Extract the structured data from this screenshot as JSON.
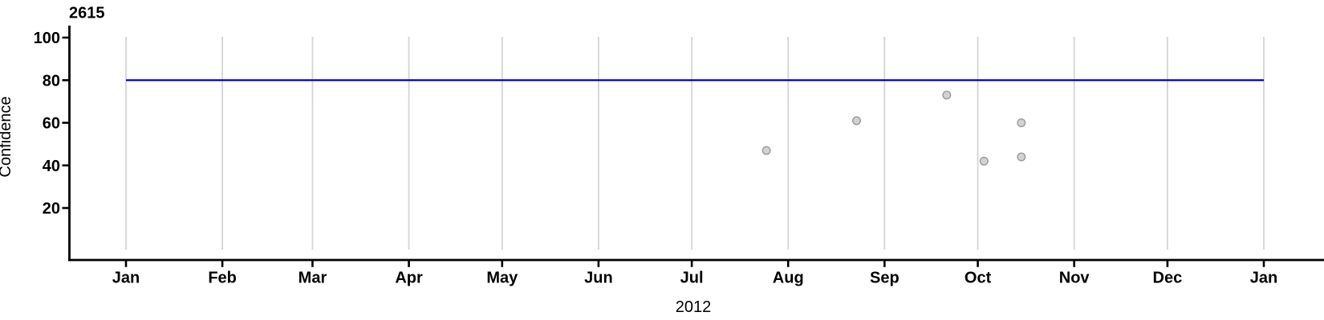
{
  "chart_data": {
    "type": "scatter",
    "title": "2615",
    "xlabel": "2012",
    "ylabel": "Confidence",
    "x_axis": {
      "domain": "2012-01-01 to 2013-01-01",
      "domain_days": 366,
      "tick_labels": [
        "Jan",
        "Feb",
        "Mar",
        "Apr",
        "May",
        "Jun",
        "Jul",
        "Aug",
        "Sep",
        "Oct",
        "Nov",
        "Dec",
        "Jan"
      ],
      "tick_day_offsets": [
        0,
        31,
        60,
        91,
        121,
        152,
        182,
        213,
        244,
        274,
        305,
        335,
        366
      ],
      "grid": true
    },
    "y_axis": {
      "ticks": [
        20,
        40,
        60,
        80,
        100
      ],
      "tick_labels": [
        "20",
        "40",
        "60",
        "80",
        "100"
      ],
      "ylim": [
        -4,
        106
      ],
      "grid": false
    },
    "reference_line": {
      "value": 80,
      "color": "#0000cd"
    },
    "points": [
      {
        "date": "2012-07-25",
        "day": 206,
        "confidence": 47
      },
      {
        "date": "2012-08-23",
        "day": 235,
        "confidence": 61
      },
      {
        "date": "2012-09-21",
        "day": 264,
        "confidence": 73
      },
      {
        "date": "2012-10-03",
        "day": 276,
        "confidence": 42
      },
      {
        "date": "2012-10-15",
        "day": 288,
        "confidence": 60
      },
      {
        "date": "2012-10-15",
        "day": 288,
        "confidence": 44
      }
    ],
    "point_style": {
      "fill": "#d2d2d2",
      "stroke": "#9a9a9a"
    },
    "colors": {
      "grid": "#d4d4d4",
      "axis": "#000000",
      "text": "#000000",
      "background": "#ffffff"
    },
    "legend": null
  }
}
